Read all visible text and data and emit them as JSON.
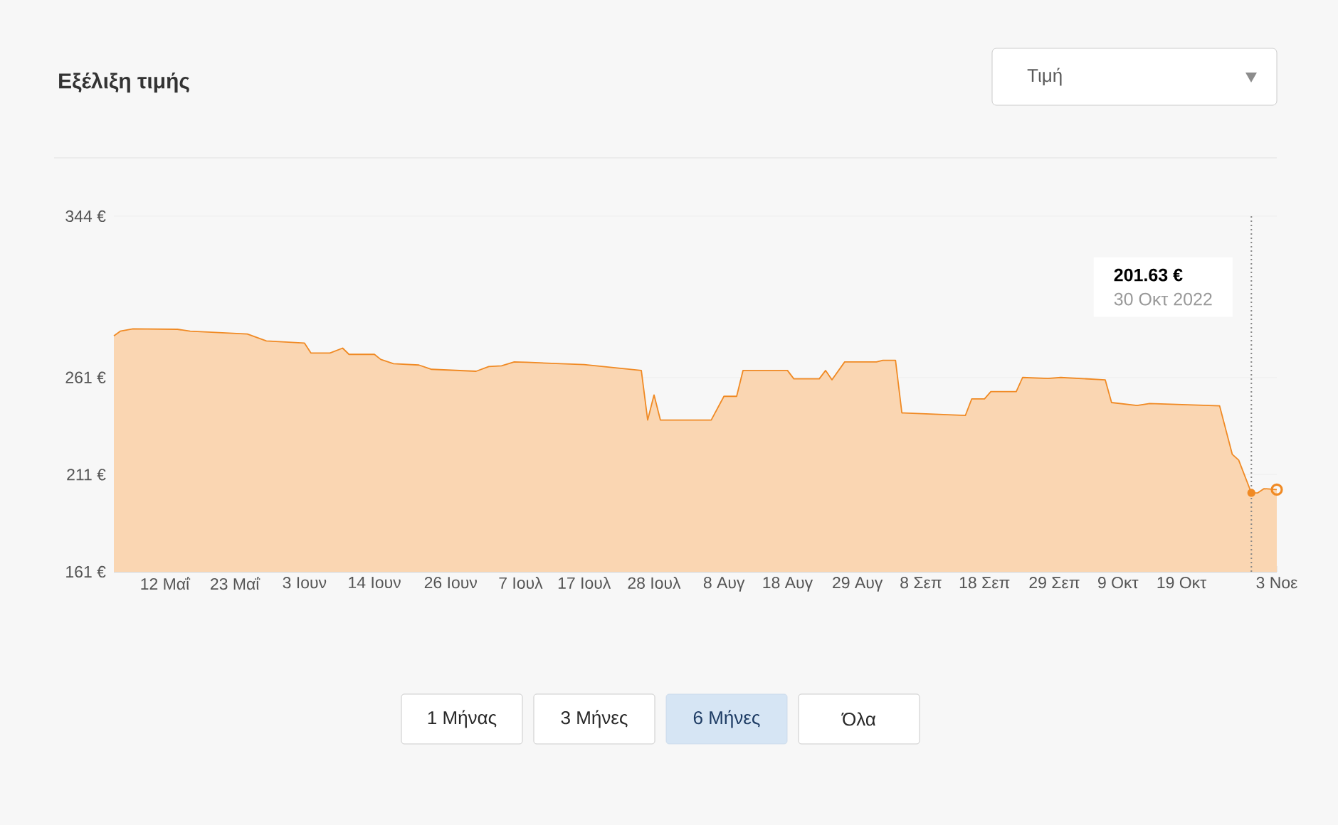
{
  "chart_data": {
    "type": "area",
    "title": "Εξέλιξη τιμής",
    "x": [
      "2022-05-04",
      "2022-05-05",
      "2022-05-07",
      "2022-05-14",
      "2022-05-16",
      "2022-05-25",
      "2022-05-28",
      "2022-06-03",
      "2022-06-04",
      "2022-06-07",
      "2022-06-09",
      "2022-06-10",
      "2022-06-14",
      "2022-06-15",
      "2022-06-17",
      "2022-06-21",
      "2022-06-23",
      "2022-06-30",
      "2022-07-02",
      "2022-07-04",
      "2022-07-06",
      "2022-07-08",
      "2022-07-17",
      "2022-07-26",
      "2022-07-27",
      "2022-07-28",
      "2022-07-29",
      "2022-08-06",
      "2022-08-08",
      "2022-08-10",
      "2022-08-11",
      "2022-08-18",
      "2022-08-19",
      "2022-08-23",
      "2022-08-24",
      "2022-08-25",
      "2022-08-27",
      "2022-09-01",
      "2022-09-02",
      "2022-09-04",
      "2022-09-05",
      "2022-09-15",
      "2022-09-16",
      "2022-09-18",
      "2022-09-19",
      "2022-09-23",
      "2022-09-24",
      "2022-09-28",
      "2022-09-30",
      "2022-10-07",
      "2022-10-08",
      "2022-10-12",
      "2022-10-14",
      "2022-10-25",
      "2022-10-27",
      "2022-10-28",
      "2022-10-30",
      "2022-10-31",
      "2022-11-01",
      "2022-11-03"
    ],
    "series": [
      {
        "color": "#f08a24",
        "values": [
          282.4,
          284.8,
          286,
          285.8,
          284.8,
          283.4,
          279.8,
          278.7,
          273.6,
          273.6,
          276.1,
          272.9,
          272.9,
          270.3,
          268.1,
          267.4,
          265.2,
          264.2,
          266.6,
          267,
          269,
          268.8,
          267.6,
          264.6,
          239.1,
          252,
          239.1,
          239.1,
          251.3,
          251.3,
          264.6,
          264.6,
          260.3,
          260.3,
          264.6,
          259.8,
          269,
          269,
          269.8,
          269.8,
          242.8,
          241.5,
          250,
          250,
          253.7,
          253.7,
          261,
          260.5,
          261,
          259.8,
          248.1,
          246.6,
          247.6,
          246.4,
          221.4,
          218.5,
          201.63,
          201.6,
          203.8,
          203.3
        ]
      }
    ],
    "xlim": [
      "2022-05-04",
      "2022-11-03"
    ],
    "xticks": [
      {
        "value": "2022-05-12",
        "label": "12 Μαΐ"
      },
      {
        "value": "2022-05-23",
        "label": "23 Μαΐ"
      },
      {
        "value": "2022-06-03",
        "label": "3 Ιουν"
      },
      {
        "value": "2022-06-14",
        "label": "14 Ιουν"
      },
      {
        "value": "2022-06-26",
        "label": "26 Ιουν"
      },
      {
        "value": "2022-07-07",
        "label": "7 Ιουλ"
      },
      {
        "value": "2022-07-17",
        "label": "17 Ιουλ"
      },
      {
        "value": "2022-07-28",
        "label": "28 Ιουλ"
      },
      {
        "value": "2022-08-08",
        "label": "8 Αυγ"
      },
      {
        "value": "2022-08-18",
        "label": "18 Αυγ"
      },
      {
        "value": "2022-08-29",
        "label": "29 Αυγ"
      },
      {
        "value": "2022-09-08",
        "label": "8 Σεπ"
      },
      {
        "value": "2022-09-18",
        "label": "18 Σεπ"
      },
      {
        "value": "2022-09-29",
        "label": "29 Σεπ"
      },
      {
        "value": "2022-10-09",
        "label": "9 Οκτ"
      },
      {
        "value": "2022-10-19",
        "label": "19 Οκτ"
      },
      {
        "value": "2022-11-03",
        "label": "3 Νοε"
      }
    ],
    "ylim": [
      161,
      344
    ],
    "yticks": [
      {
        "value": 161,
        "label": "161 €"
      },
      {
        "value": 211,
        "label": "211 €"
      },
      {
        "value": 261,
        "label": "261 €"
      },
      {
        "value": 344,
        "label": "344 €"
      }
    ],
    "grid": "y",
    "ref_lines": [
      {
        "axis": "x",
        "value": "2022-10-30",
        "color": "#888888",
        "line_style": "dotted"
      }
    ],
    "annotations": [
      "201.63 €",
      "30 Οκτ 2022",
      "Τιμή",
      "1 Μήνας",
      "3 Μήνες",
      "6 Μήνες",
      "Όλα"
    ]
  }
}
